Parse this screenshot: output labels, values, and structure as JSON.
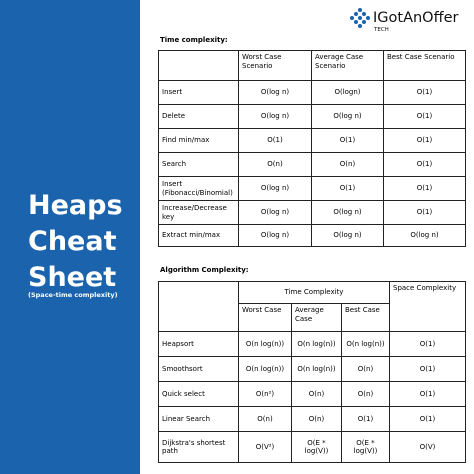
{
  "sidebar": {
    "title": [
      "Heaps",
      "Cheat",
      "Sheet"
    ],
    "subtitle": "(Space-time complexity)"
  },
  "logo": {
    "name": "IGotAnOffer",
    "tag": "TECH"
  },
  "time_table": {
    "label": "Time complexity:",
    "header": [
      "Worst Case Scenario",
      "Average Case Scenario",
      "Best Case Scenario"
    ],
    "rows": [
      [
        "Insert",
        "O(log n)",
        "O(logn)",
        "O(1)"
      ],
      [
        "Delete",
        "O(log n)",
        "O(log n)",
        "O(1)"
      ],
      [
        "Find min/max",
        "O(1)",
        "O(1)",
        "O(1)"
      ],
      [
        "Search",
        "O(n)",
        "O(n)",
        "O(1)"
      ],
      [
        "Insert (Fibonacci/Binomial)",
        "O(log n)",
        "O(1)",
        "O(1)"
      ],
      [
        "Increase/Decrease key",
        "O(log n)",
        "O(log n)",
        "O(1)"
      ],
      [
        "Extract min/max",
        "O(log n)",
        "O(log n)",
        "O(log n)"
      ]
    ]
  },
  "algo_table": {
    "label": "Algorithm Complexity:",
    "time_header": "Time Complexity",
    "space_header": "Space Complexity",
    "sub_header": [
      "Worst Case",
      "Average Case",
      "Best Case"
    ],
    "rows": [
      [
        "Heapsort",
        "O(n log(n))",
        "O(n log(n))",
        "O(n log(n))",
        "O(1)"
      ],
      [
        "Smoothsort",
        "O(n log(n))",
        "O(n log(n))",
        "O(n)",
        "O(1)"
      ],
      [
        "Quick select",
        "O(n²)",
        "O(n)",
        "O(n)",
        "O(1)"
      ],
      [
        "Linear Search",
        "O(n)",
        "O(n)",
        "O(1)",
        "O(1)"
      ],
      [
        "Dijkstra's shortest path",
        "O(V²)",
        "O(E * log(V))",
        "O(E * log(V))",
        "O(V)"
      ]
    ]
  }
}
